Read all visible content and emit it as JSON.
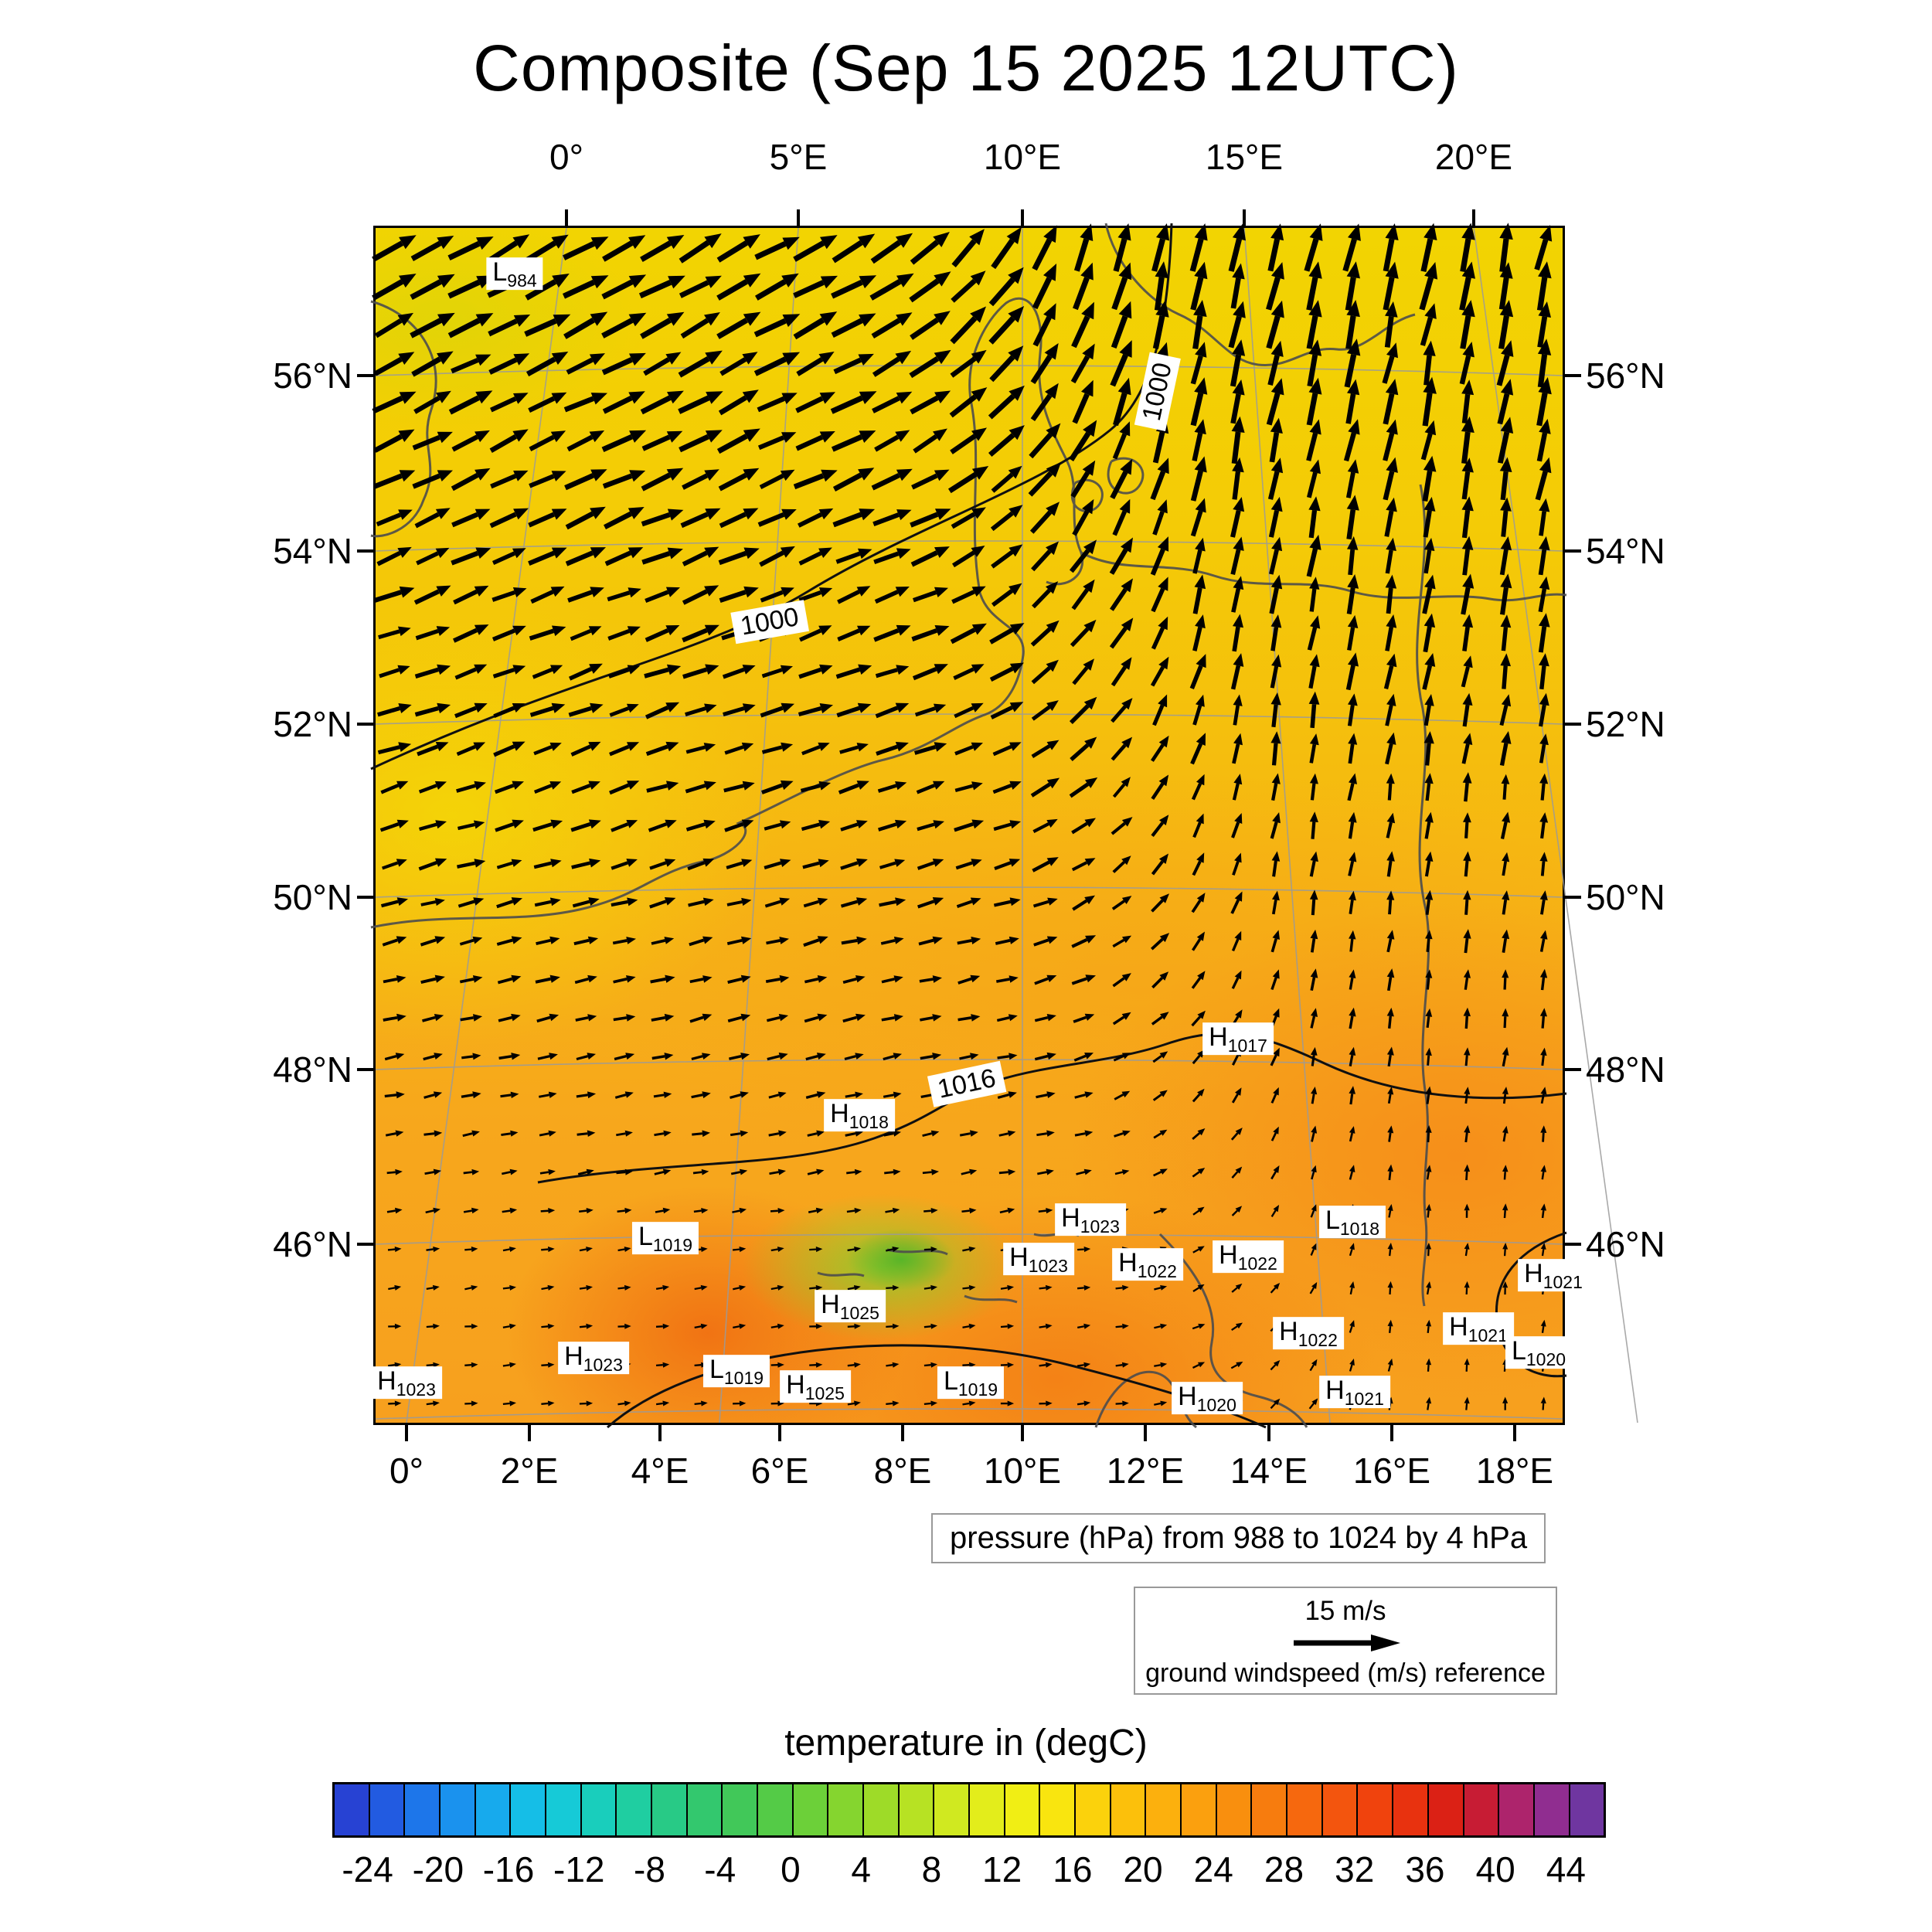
{
  "title": "Composite (Sep 15 2025 12UTC)",
  "captions": {
    "pressure": "pressure (hPa) from 988 to 1024 by 4 hPa"
  },
  "map": {
    "axis_top": [
      {
        "label": "0°",
        "x": 247
      },
      {
        "label": "5°E",
        "x": 547
      },
      {
        "label": "10°E",
        "x": 837
      },
      {
        "label": "15°E",
        "x": 1124
      },
      {
        "label": "20°E",
        "x": 1421
      }
    ],
    "axis_bottom": [
      {
        "label": "0°",
        "x": 40
      },
      {
        "label": "2°E",
        "x": 199
      },
      {
        "label": "4°E",
        "x": 368
      },
      {
        "label": "6°E",
        "x": 523
      },
      {
        "label": "8°E",
        "x": 682
      },
      {
        "label": "10°E",
        "x": 837
      },
      {
        "label": "12°E",
        "x": 996
      },
      {
        "label": "14°E",
        "x": 1156
      },
      {
        "label": "16°E",
        "x": 1315
      },
      {
        "label": "18°E",
        "x": 1474
      }
    ],
    "axis_left": [
      {
        "label": "56°N",
        "y": 191
      },
      {
        "label": "54°N",
        "y": 418
      },
      {
        "label": "52°N",
        "y": 642
      },
      {
        "label": "50°N",
        "y": 866
      },
      {
        "label": "48°N",
        "y": 1089
      },
      {
        "label": "46°N",
        "y": 1315
      }
    ],
    "axis_right": [
      {
        "label": "56°N",
        "y": 191
      },
      {
        "label": "54°N",
        "y": 418
      },
      {
        "label": "52°N",
        "y": 642
      },
      {
        "label": "50°N",
        "y": 866
      },
      {
        "label": "48°N",
        "y": 1089
      },
      {
        "label": "46°N",
        "y": 1315
      }
    ]
  },
  "chart_data": {
    "type": "heatmap",
    "title": "Composite (Sep 15 2025 12UTC)",
    "fields": [
      "temperature in degC (color shading)",
      "sea level pressure in hPa (black contours, 988 to 1024 by 4)",
      "ground windspeed in m/s (black vectors, reference 15 m/s)"
    ],
    "x_range": "0°E to 20°E",
    "y_range": "approx 44°N to 57.5°N",
    "grid": true,
    "pressure_contours": {
      "from": 988,
      "to": 1024,
      "by": 4
    },
    "wind_reference": {
      "speed": "15 m/s",
      "caption": "ground windspeed (m/s) reference"
    },
    "temperature": {
      "title": "temperature in (degC)",
      "min": -26,
      "max": 46,
      "step": 2,
      "ticks": [
        -24,
        -20,
        -16,
        -12,
        -8,
        -4,
        0,
        4,
        8,
        12,
        16,
        20,
        24,
        28,
        32,
        36,
        40,
        44
      ],
      "palette": [
        [
          -26,
          "#2a35cc"
        ],
        [
          -22,
          "#1f68e8"
        ],
        [
          -18,
          "#18a0f0"
        ],
        [
          -14,
          "#14c8e4"
        ],
        [
          -10,
          "#1ad0ae"
        ],
        [
          -6,
          "#2cc878"
        ],
        [
          -2,
          "#48c84e"
        ],
        [
          2,
          "#78d232"
        ],
        [
          6,
          "#aade24"
        ],
        [
          10,
          "#dcec1e"
        ],
        [
          14,
          "#f8ee10"
        ],
        [
          18,
          "#fcc80a"
        ],
        [
          22,
          "#fca80e"
        ],
        [
          26,
          "#f8860e"
        ],
        [
          30,
          "#f55e0e"
        ],
        [
          34,
          "#ee3a0c"
        ],
        [
          38,
          "#d41818"
        ],
        [
          42,
          "#a02888"
        ],
        [
          46,
          "#5f3aa8"
        ]
      ]
    },
    "contour_labels": [
      {
        "value": "1000",
        "x": 1012,
        "y": 212,
        "rot": -78
      },
      {
        "value": "1000",
        "x": 510,
        "y": 510,
        "rot": -10
      },
      {
        "value": "1016",
        "x": 765,
        "y": 1108,
        "rot": -12
      }
    ],
    "pressure_centers": [
      {
        "type": "L",
        "value": "984",
        "x": 180,
        "y": 59
      },
      {
        "type": "H",
        "value": "1017",
        "x": 1116,
        "y": 1049
      },
      {
        "type": "H",
        "value": "1018",
        "x": 626,
        "y": 1148
      },
      {
        "type": "H",
        "value": "1023",
        "x": 925,
        "y": 1283
      },
      {
        "type": "H",
        "value": "1023",
        "x": 858,
        "y": 1334
      },
      {
        "type": "H",
        "value": "1022",
        "x": 999,
        "y": 1341
      },
      {
        "type": "H",
        "value": "1022",
        "x": 1129,
        "y": 1331
      },
      {
        "type": "L",
        "value": "1018",
        "x": 1264,
        "y": 1286
      },
      {
        "type": "L",
        "value": "1019",
        "x": 375,
        "y": 1307
      },
      {
        "type": "H",
        "value": "1025",
        "x": 614,
        "y": 1395
      },
      {
        "type": "H",
        "value": "1023",
        "x": 282,
        "y": 1462
      },
      {
        "type": "H",
        "value": "1023",
        "x": 40,
        "y": 1494
      },
      {
        "type": "L",
        "value": "1019",
        "x": 467,
        "y": 1479
      },
      {
        "type": "H",
        "value": "1025",
        "x": 569,
        "y": 1499
      },
      {
        "type": "L",
        "value": "1019",
        "x": 770,
        "y": 1494
      },
      {
        "type": "H",
        "value": "1020",
        "x": 1076,
        "y": 1514
      },
      {
        "type": "H",
        "value": "1022",
        "x": 1207,
        "y": 1430
      },
      {
        "type": "H",
        "value": "1021",
        "x": 1267,
        "y": 1506
      },
      {
        "type": "H",
        "value": "1021",
        "x": 1427,
        "y": 1424
      },
      {
        "type": "L",
        "value": "1020",
        "x": 1505,
        "y": 1455
      },
      {
        "type": "H",
        "value": "1021",
        "x": 1524,
        "y": 1355
      }
    ]
  }
}
